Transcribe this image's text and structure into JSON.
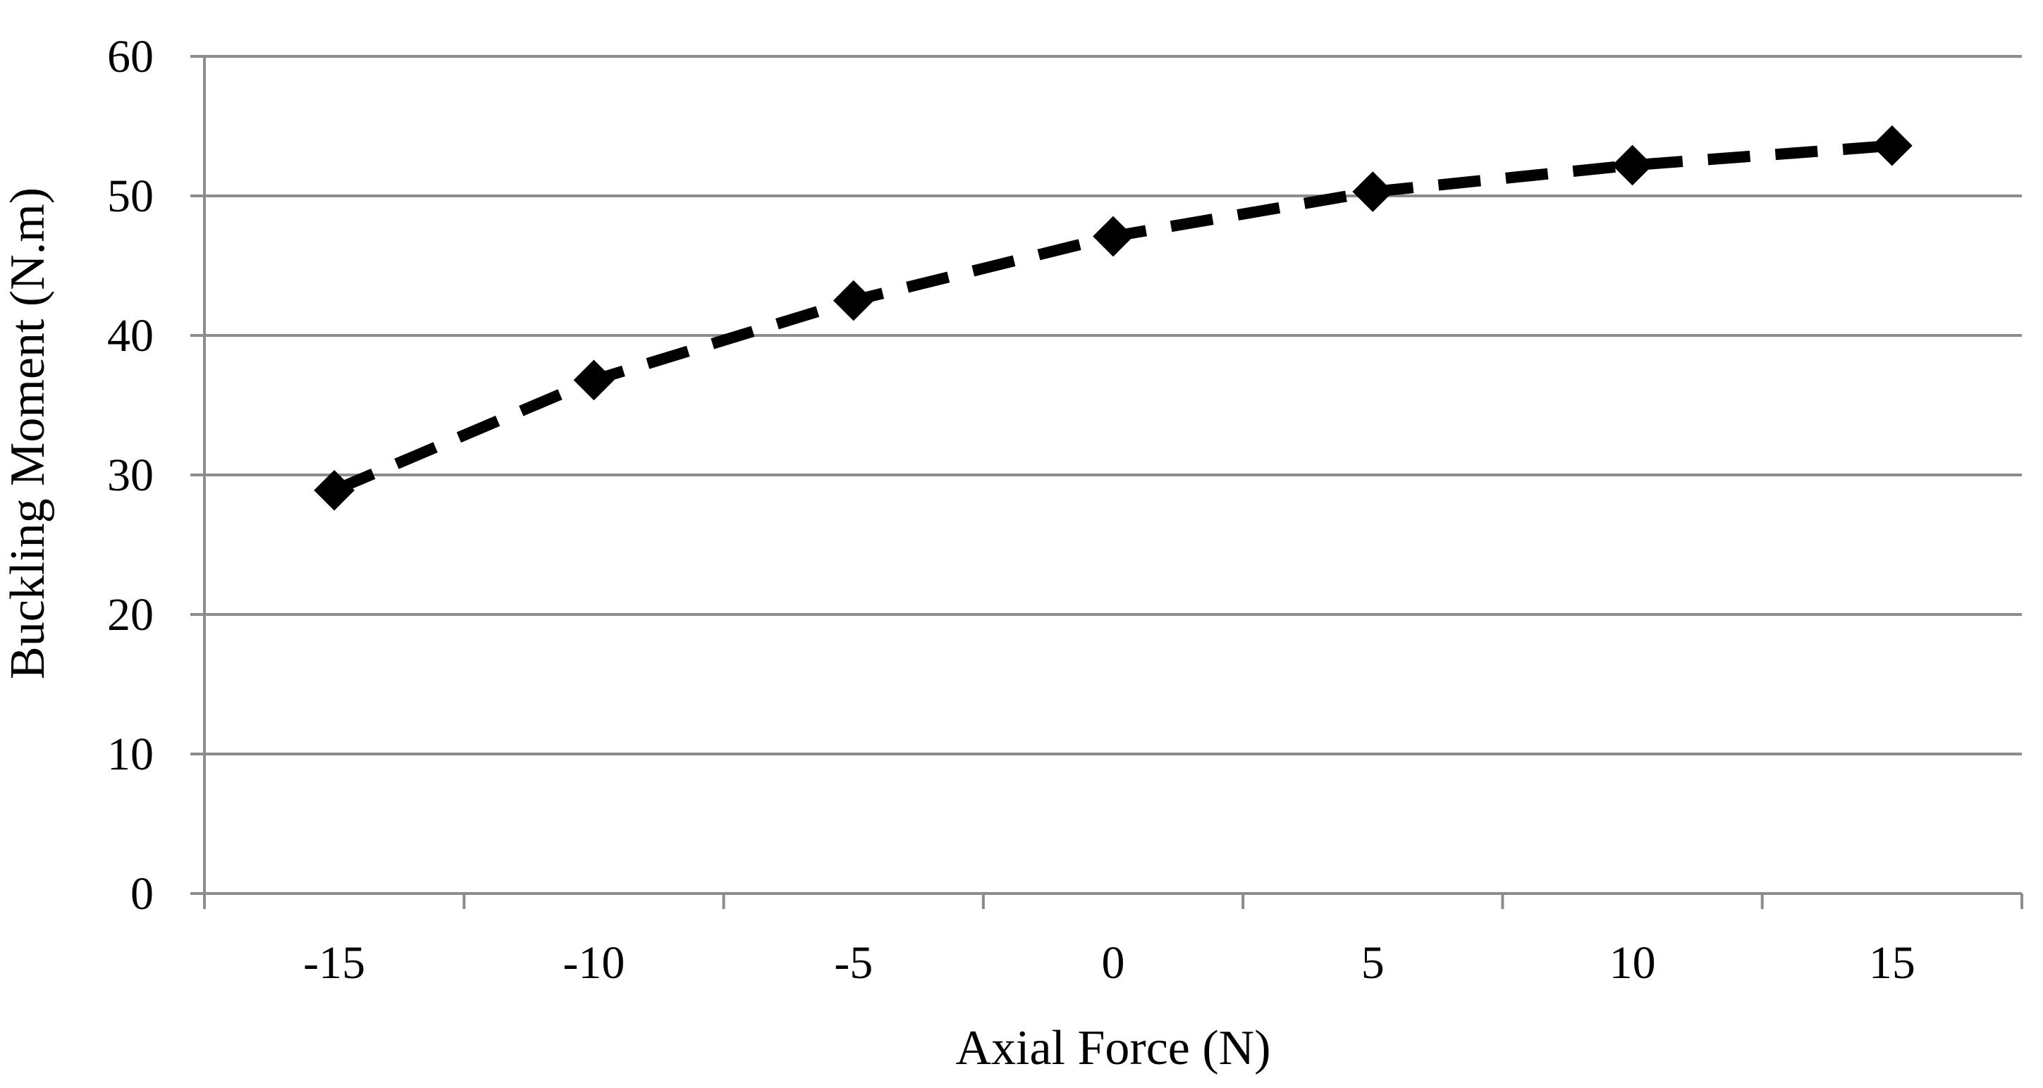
{
  "chart_data": {
    "type": "line",
    "title": "",
    "xlabel": "Axial Force (N)",
    "ylabel": "Buckling Moment (N.m)",
    "x": [
      -15,
      -10,
      -5,
      0,
      5,
      10,
      15
    ],
    "series": [
      {
        "values": [
          28.9,
          36.8,
          42.5,
          47.1,
          50.3,
          52.2,
          53.6
        ]
      }
    ],
    "x_ticks": [
      "-15",
      "-10",
      "-5",
      "0",
      "5",
      "10",
      "15"
    ],
    "y_ticks": [
      "0",
      "10",
      "20",
      "30",
      "40",
      "50",
      "60"
    ],
    "ylim": [
      0,
      60
    ],
    "grid": "horizontal",
    "legend": "none",
    "line_style": "dashed",
    "marker": "diamond",
    "colors": {
      "series": "#000000",
      "grid": "#8c8c8c",
      "axis": "#8c8c8c"
    }
  }
}
